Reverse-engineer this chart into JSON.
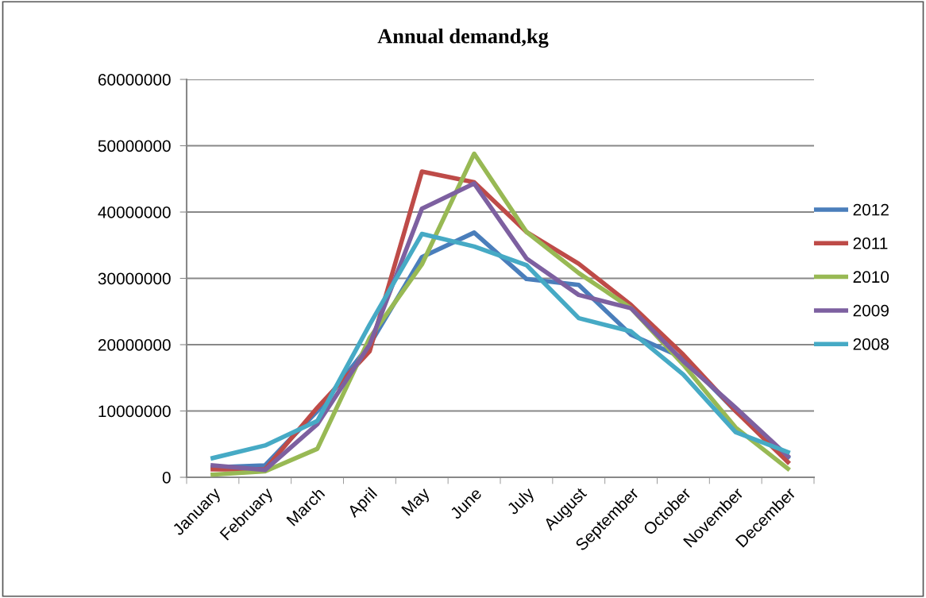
{
  "chart_data": {
    "type": "line",
    "title": "Annual demand,kg",
    "categories": [
      "January",
      "February",
      "March",
      "April",
      "May",
      "June",
      "July",
      "August",
      "September",
      "October",
      "November",
      "December"
    ],
    "series": [
      {
        "name": "2012",
        "color": "#4a7ebb",
        "values": [
          1500000,
          1800000,
          10000000,
          20000000,
          33200000,
          36900000,
          29900000,
          29000000,
          21500000,
          18000000,
          10000000,
          3000000
        ]
      },
      {
        "name": "2011",
        "color": "#be4b48",
        "values": [
          1200000,
          1200000,
          10500000,
          19000000,
          46100000,
          44500000,
          37000000,
          32200000,
          26000000,
          18500000,
          10000000,
          2300000
        ]
      },
      {
        "name": "2010",
        "color": "#98b954",
        "values": [
          400000,
          900000,
          4300000,
          21000000,
          32100000,
          48800000,
          37000000,
          30800000,
          25500000,
          17000000,
          7500000,
          1300000
        ]
      },
      {
        "name": "2009",
        "color": "#7d60a0",
        "values": [
          1800000,
          1100000,
          8000000,
          20000000,
          40500000,
          44300000,
          33000000,
          27500000,
          25500000,
          17500000,
          10500000,
          3200000
        ]
      },
      {
        "name": "2008",
        "color": "#46aac5",
        "values": [
          2900000,
          4800000,
          8500000,
          23000000,
          36700000,
          34800000,
          32000000,
          24000000,
          22000000,
          15500000,
          6800000,
          3800000
        ]
      }
    ],
    "ylim": [
      0,
      60000000
    ],
    "yticks": [
      0,
      10000000,
      20000000,
      30000000,
      40000000,
      50000000,
      60000000
    ],
    "grid": "y",
    "legend": "right",
    "marker": "none",
    "line_style": "solid"
  }
}
